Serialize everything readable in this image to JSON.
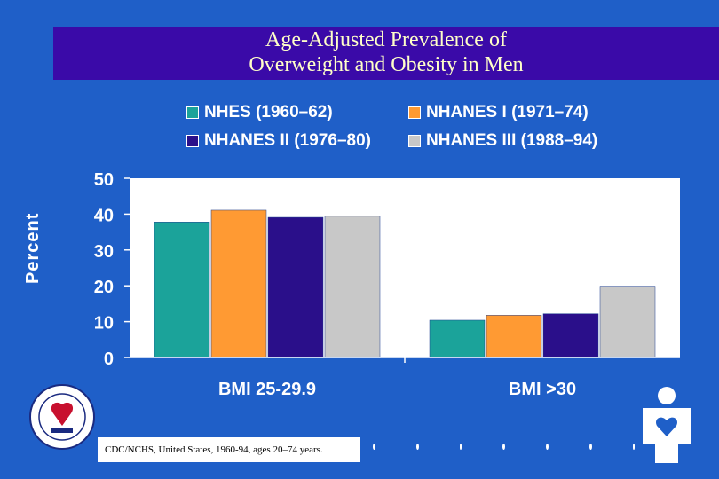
{
  "title_line1": "Age-Adjusted Prevalence of",
  "title_line2": "Overweight and Obesity in Men",
  "footnote": "CDC/NCHS, United States, 1960-94, ages 20–74 years.",
  "colors": {
    "background": "#1f5fc8",
    "title_band": "#3a0aa8",
    "title_text": "#ffffc8"
  },
  "chart_data": {
    "type": "bar",
    "categories": [
      "BMI 25-29.9",
      "BMI ≥30"
    ],
    "category_labels": [
      "BMI 25-29.9",
      "BMI >30"
    ],
    "ylabel": "Percent",
    "xlabel": "",
    "ylim": [
      0,
      50
    ],
    "yticks": [
      "0",
      "10",
      "20",
      "30",
      "40",
      "50"
    ],
    "legend_position": "top",
    "series": [
      {
        "name": "NHES (1960–62)",
        "color": "#1ba39a",
        "values": [
          37.8,
          10.4
        ],
        "labels": [
          "37.8",
          "10.4"
        ]
      },
      {
        "name": "NHANES I (1971–74)",
        "color": "#ff9a33",
        "values": [
          41.1,
          11.8
        ],
        "labels": [
          "41.1",
          "11.8"
        ]
      },
      {
        "name": "NHANES II (1976–80)",
        "color": "#2a0f8a",
        "values": [
          39.1,
          12.2
        ],
        "labels": [
          "39.1",
          "12.2"
        ]
      },
      {
        "name": "NHANES III (1988–94)",
        "color": "#c8c8c8",
        "values": [
          39.4,
          19.9
        ],
        "labels": [
          "39.4",
          "19.9"
        ]
      }
    ]
  }
}
